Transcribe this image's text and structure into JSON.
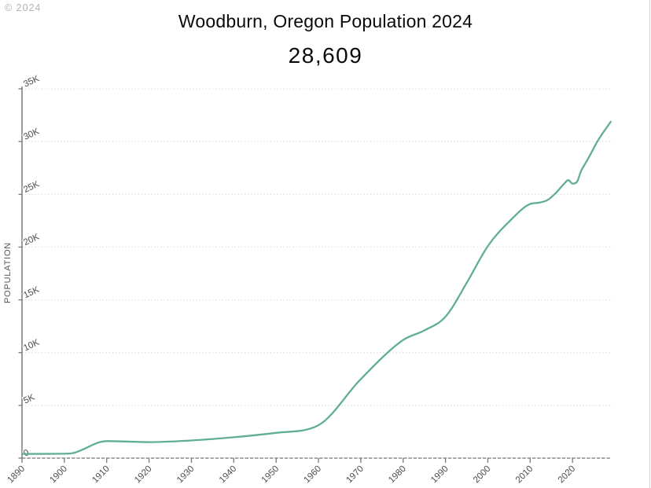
{
  "watermark": "© 2024",
  "header": {
    "title": "Woodburn, Oregon Population 2024",
    "value": "28,609"
  },
  "chart": {
    "y_axis_label": "POPULATION",
    "y_ticks": [
      "0",
      "5K",
      "10K",
      "15K",
      "20K",
      "25K",
      "30K",
      "35K"
    ],
    "y_tick_step": 5000,
    "x_ticks": [
      "1890",
      "1900",
      "1910",
      "1920",
      "1930",
      "1940",
      "1950",
      "1960",
      "1970",
      "1980",
      "1990",
      "2000",
      "2010",
      "2020"
    ],
    "colors": {
      "line": "#60ae97",
      "grid": "#dcdcdc",
      "axis": "#7a7a7a",
      "tick_text": "#4d4d4d",
      "axis_label": "#555555"
    }
  },
  "chart_data": {
    "type": "line",
    "title": "Woodburn, Oregon Population 2024",
    "subtitle_value": "28,609",
    "xlabel": "",
    "ylabel": "POPULATION",
    "xlim": [
      1890,
      2029
    ],
    "ylim": [
      0,
      35000
    ],
    "grid": "horizontal-dotted",
    "legend": "none",
    "x": [
      1890,
      1900,
      1902,
      1910,
      1920,
      1930,
      1940,
      1950,
      1960,
      1970,
      1980,
      1985,
      1990,
      1995,
      2000,
      2005,
      2010,
      2012,
      2014,
      2016,
      2018,
      2019,
      2020,
      2021,
      2022,
      2023,
      2024,
      2026,
      2029
    ],
    "series": [
      {
        "name": "Population",
        "values": [
          400,
          420,
          480,
          1616,
          1520,
          1675,
          1982,
          2395,
          3120,
          7495,
          11196,
          12100,
          13404,
          16600,
          20100,
          22400,
          24080,
          24200,
          24440,
          25100,
          26000,
          26347,
          26013,
          26150,
          27200,
          27900,
          28609,
          30100,
          31870
        ]
      }
    ]
  }
}
